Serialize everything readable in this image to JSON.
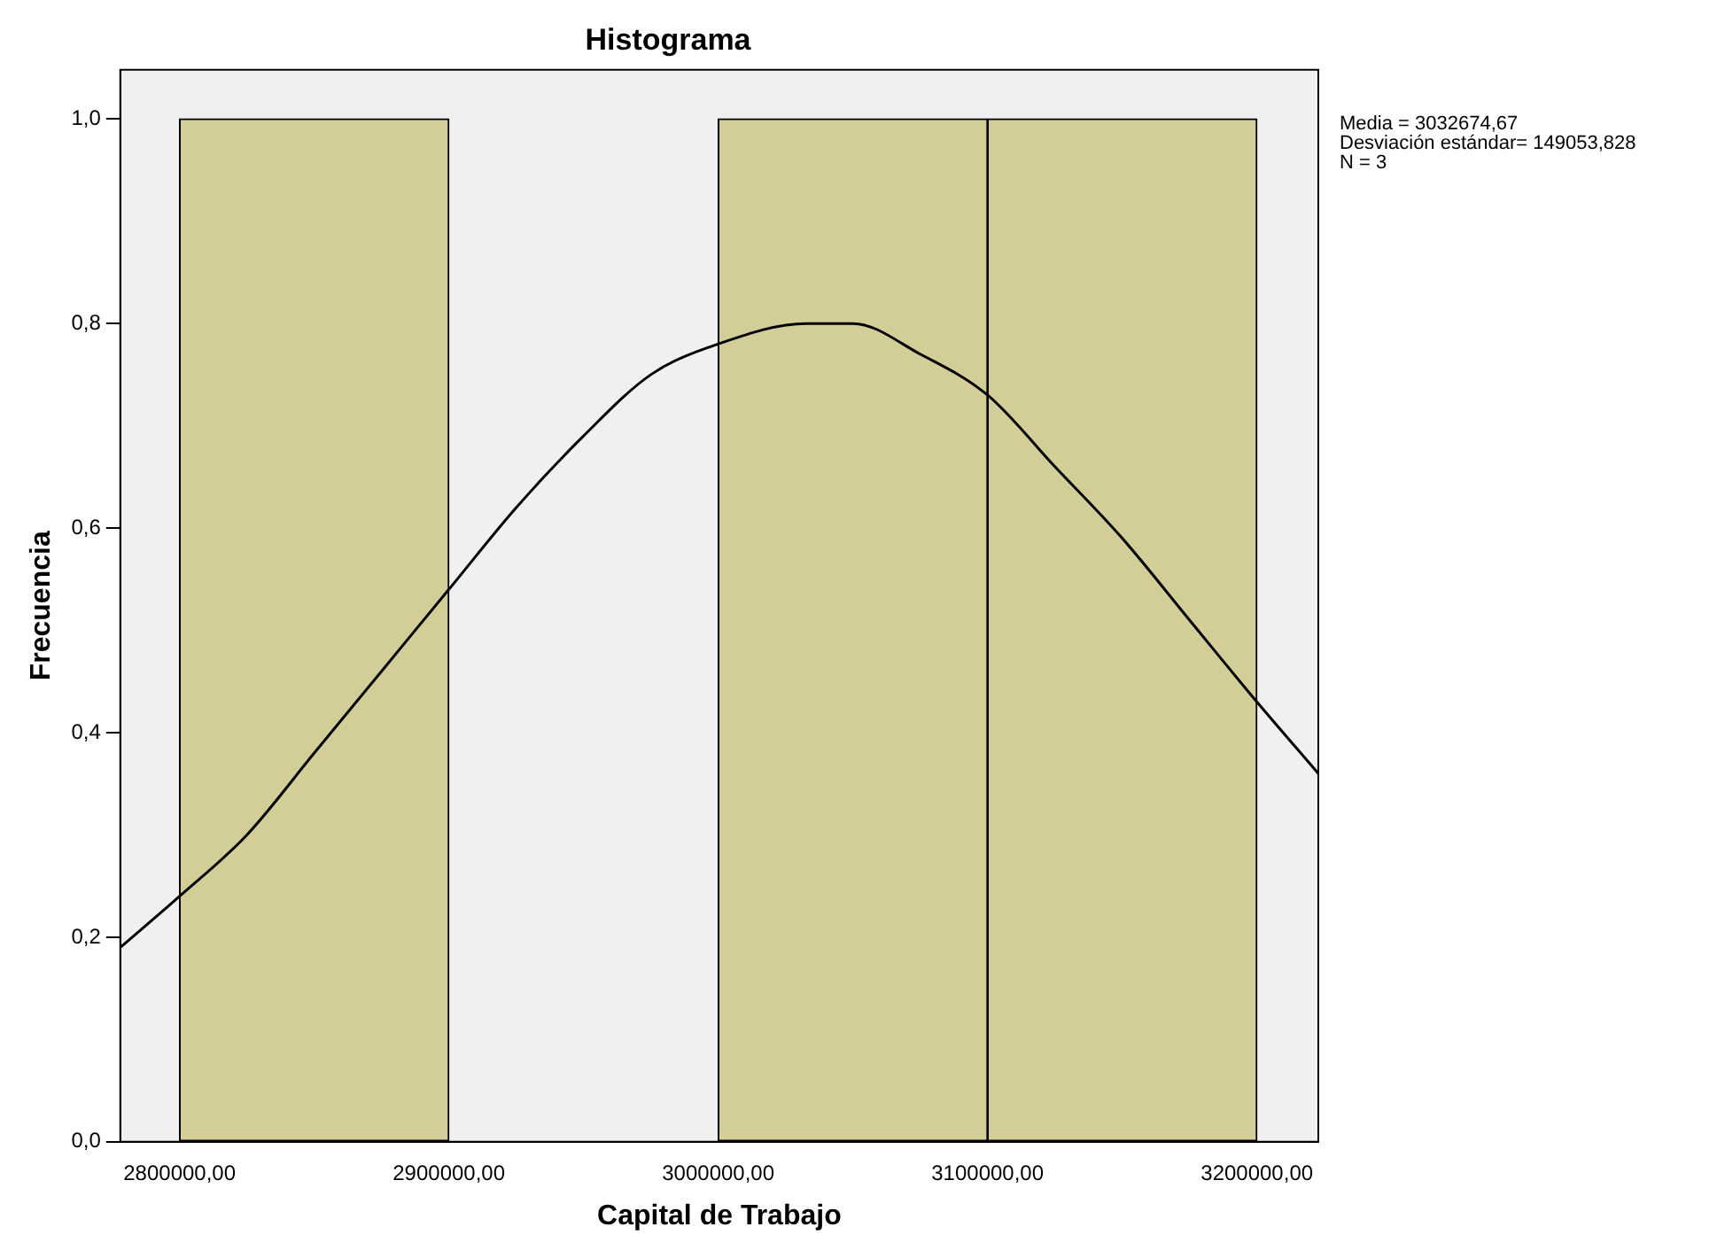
{
  "chart_data": {
    "type": "histogram",
    "title": "Histograma",
    "xlabel": "Capital de Trabajo",
    "ylabel": "Frecuencia",
    "bins": [
      2800000,
      2900000,
      3000000,
      3100000,
      3200000
    ],
    "values": [
      1,
      0,
      1,
      1
    ],
    "color": "#d3ce97",
    "series": [
      {
        "type": "line",
        "color": "#000000",
        "x": [
          2778000,
          2800000,
          2825000,
          2850000,
          2875000,
          2900000,
          2925000,
          2950000,
          2975000,
          3000000,
          3032675,
          3050000,
          3075000,
          3100000,
          3125000,
          3150000,
          3175000,
          3200000,
          3222800
        ],
        "values": [
          0.19,
          0.24,
          0.3,
          0.38,
          0.46,
          0.54,
          0.62,
          0.69,
          0.75,
          0.78,
          0.8,
          0.8,
          0.77,
          0.73,
          0.66,
          0.59,
          0.51,
          0.43,
          0.36
        ]
      }
    ],
    "xlim": [
      2778000,
      3222800
    ],
    "xticks": [
      {
        "value": 2800000,
        "label": "2800000,00"
      },
      {
        "value": 2900000,
        "label": "2900000,00"
      },
      {
        "value": 3000000,
        "label": "3000000,00"
      },
      {
        "value": 3100000,
        "label": "3100000,00"
      },
      {
        "value": 3200000,
        "label": "3200000,00"
      }
    ],
    "ylim": [
      0,
      1.048
    ],
    "yticks": [
      {
        "value": 0,
        "label": "0,0"
      },
      {
        "value": 0.2,
        "label": "0,2"
      },
      {
        "value": 0.4,
        "label": "0,4"
      },
      {
        "value": 0.6,
        "label": "0,6"
      },
      {
        "value": 0.8,
        "label": "0,8"
      },
      {
        "value": 1,
        "label": "1,0"
      }
    ],
    "grid": false,
    "legend": false,
    "annotations": [
      "Media = 3032674,67",
      "Desviación estándar= 149053,828",
      "N = 3"
    ]
  }
}
